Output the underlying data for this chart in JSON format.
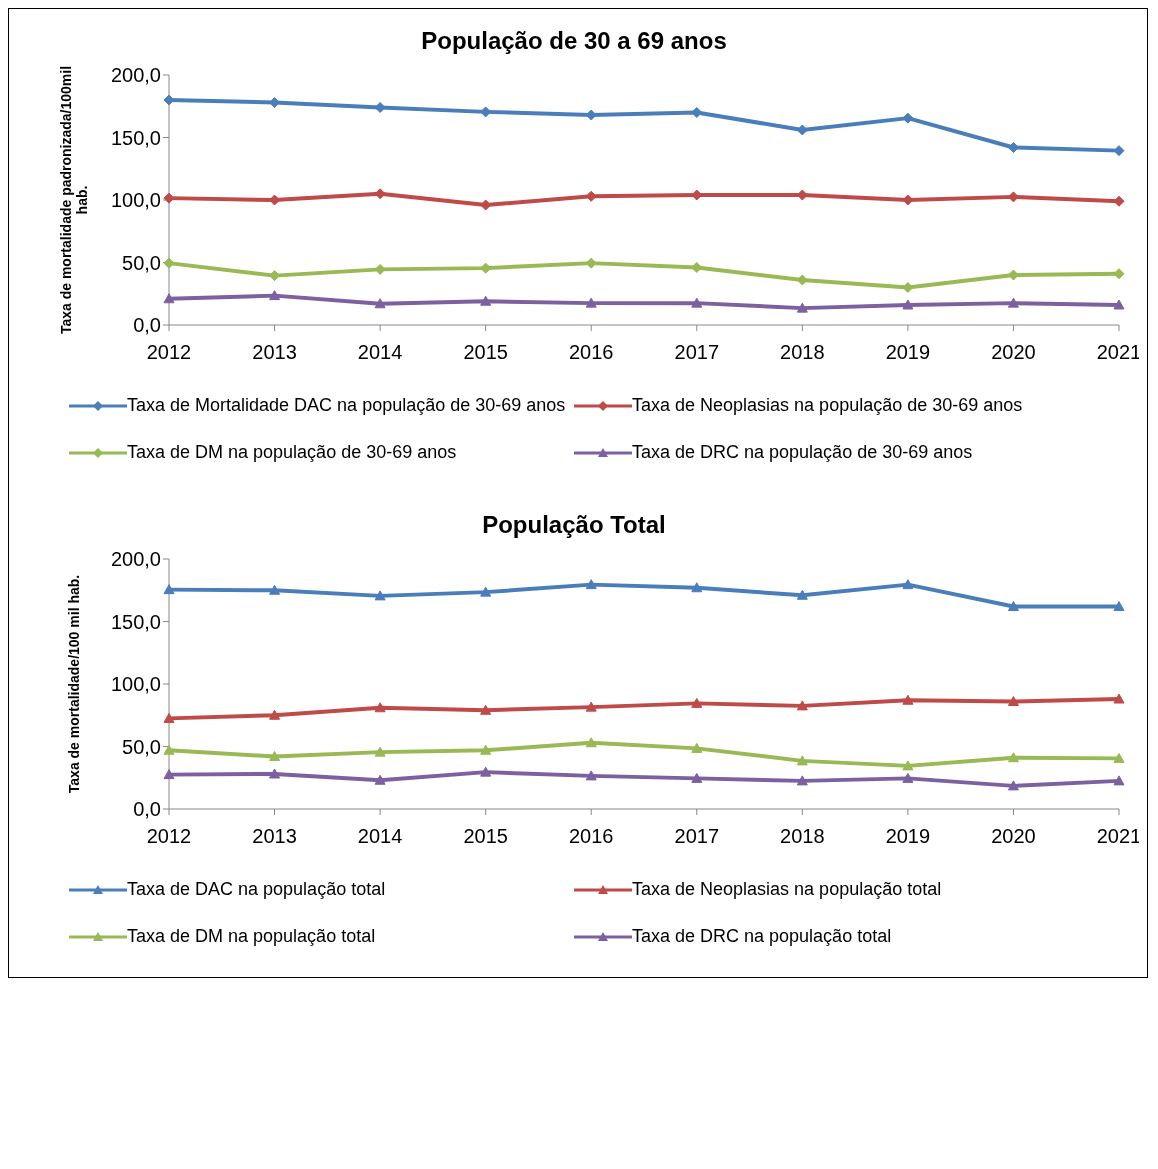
{
  "chart_data": [
    {
      "type": "line",
      "title": "População de 30 a 69 anos",
      "ylabel": "Taxa de mortalidade padronizada/100mil hab.",
      "categories": [
        "2012",
        "2013",
        "2014",
        "2015",
        "2016",
        "2017",
        "2018",
        "2019",
        "2020",
        "2021"
      ],
      "ylim": [
        0,
        200
      ],
      "yticks": [
        {
          "value": 0,
          "label": "0,0"
        },
        {
          "value": 50,
          "label": "50,0"
        },
        {
          "value": 100,
          "label": "100,0"
        },
        {
          "value": 150,
          "label": "150,0"
        },
        {
          "value": 200,
          "label": "200,0"
        }
      ],
      "legend": "bottom",
      "line_style": "solid",
      "series": [
        {
          "name": "Taxa de Mortalidade DAC na população de 30-69 anos",
          "color": "#4a7ebb",
          "marker": "diamond",
          "values": [
            180,
            178,
            174,
            170.5,
            168,
            170,
            156,
            165.5,
            142,
            139.5
          ]
        },
        {
          "name": "Taxa de Neoplasias na população de 30-69 anos",
          "color": "#be4b48",
          "marker": "diamond",
          "values": [
            101.5,
            100,
            105,
            96,
            103,
            104,
            104,
            100,
            102.5,
            99
          ]
        },
        {
          "name": "Taxa de DM na população de 30-69 anos",
          "color": "#98b954",
          "marker": "diamond",
          "values": [
            49.5,
            39.5,
            44.5,
            45.5,
            49.5,
            46,
            36,
            30,
            40,
            41
          ]
        },
        {
          "name": "Taxa de DRC na população de 30-69 anos",
          "color": "#7d60a0",
          "marker": "triangle",
          "values": [
            21,
            23.5,
            17,
            19,
            17.5,
            17.5,
            13.5,
            16,
            17.5,
            16
          ]
        }
      ]
    },
    {
      "type": "line",
      "title": "População Total",
      "ylabel": "Taxa de mortalidade/100 mil hab.",
      "categories": [
        "2012",
        "2013",
        "2014",
        "2015",
        "2016",
        "2017",
        "2018",
        "2019",
        "2020",
        "2021"
      ],
      "ylim": [
        0,
        200
      ],
      "yticks": [
        {
          "value": 0,
          "label": "0,0"
        },
        {
          "value": 50,
          "label": "50,0"
        },
        {
          "value": 100,
          "label": "100,0"
        },
        {
          "value": 150,
          "label": "150,0"
        },
        {
          "value": 200,
          "label": "200,0"
        }
      ],
      "legend": "bottom",
      "line_style": "solid",
      "series": [
        {
          "name": "Taxa de DAC na população total",
          "color": "#4a7ebb",
          "marker": "triangle",
          "values": [
            175.5,
            175,
            170.5,
            173.5,
            179.5,
            177,
            171,
            179.5,
            162,
            162
          ]
        },
        {
          "name": "Taxa de Neoplasias na população total",
          "color": "#be4b48",
          "marker": "triangle",
          "values": [
            72.5,
            75,
            81,
            79,
            81.5,
            84.5,
            82.5,
            87,
            86,
            88
          ]
        },
        {
          "name": "Taxa de DM na população total",
          "color": "#98b954",
          "marker": "triangle",
          "values": [
            47,
            42,
            45.5,
            47,
            53,
            48.5,
            38.5,
            34.5,
            41,
            40.5
          ]
        },
        {
          "name": "Taxa de DRC na população total",
          "color": "#7d60a0",
          "marker": "triangle",
          "values": [
            27.5,
            28,
            23,
            29.5,
            26.5,
            24.5,
            22.5,
            24.5,
            18.5,
            22.5
          ]
        }
      ]
    }
  ]
}
